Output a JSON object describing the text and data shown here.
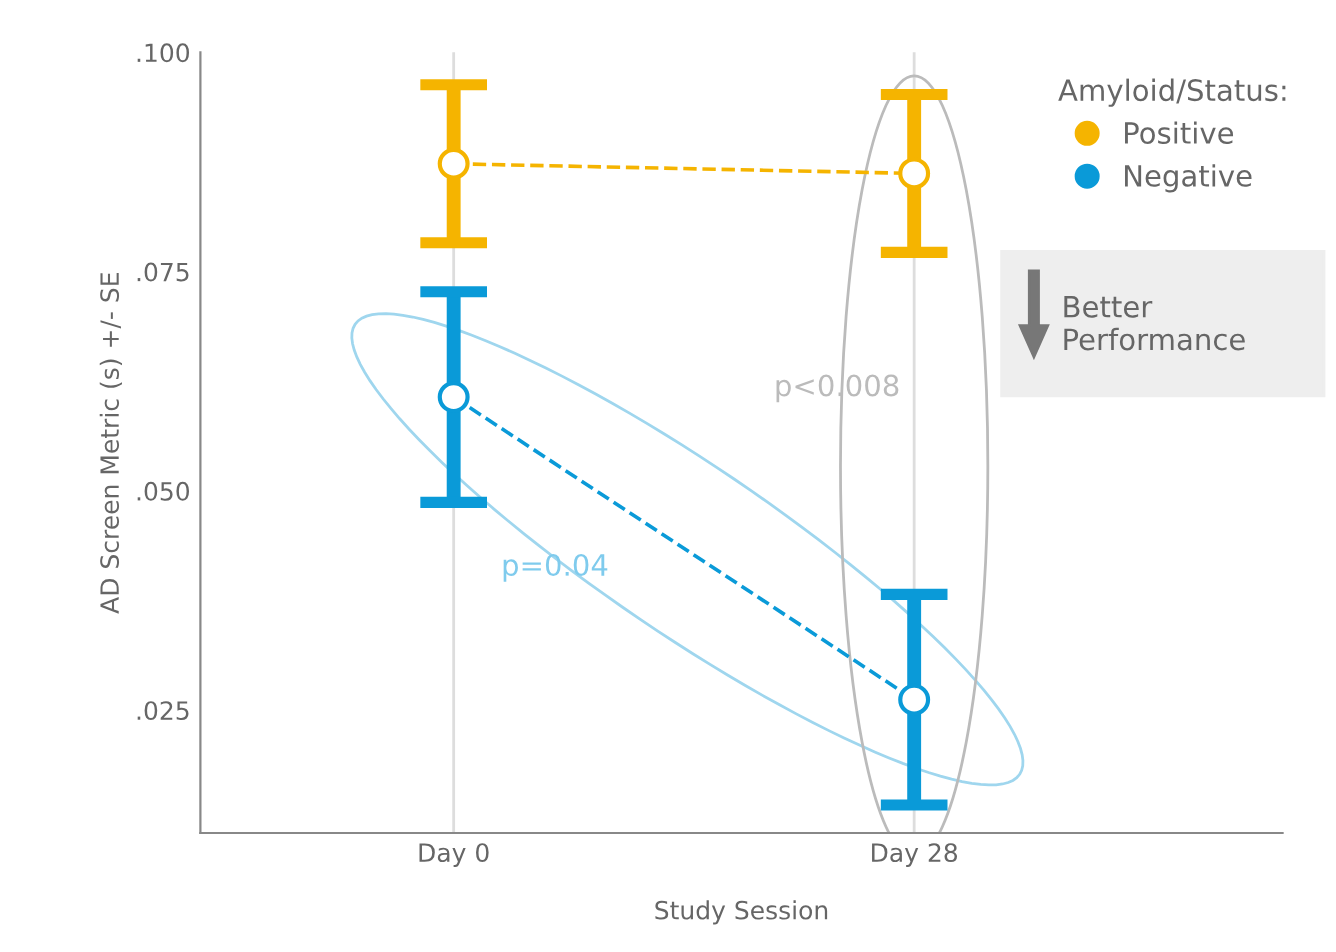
{
  "chart_data": {
    "type": "line",
    "xlabel": "Study Session",
    "ylabel": "AD Screen Metric (s) +/- SE",
    "legend_title": "Amyloid/Status:",
    "categories": [
      "Day 0",
      "Day 28"
    ],
    "series": [
      {
        "name": "Positive",
        "color": "#f5b400",
        "values": [
          0.0873,
          0.0862
        ],
        "errors": [
          0.009,
          0.009
        ]
      },
      {
        "name": "Negative",
        "color": "#0a9ad8",
        "values": [
          0.0607,
          0.0262
        ],
        "errors": [
          0.012,
          0.012
        ]
      }
    ],
    "ylim": [
      0.011,
      0.1
    ],
    "yticks": [
      {
        "value": 0.025,
        "label": ".025"
      },
      {
        "value": 0.05,
        "label": ".050"
      },
      {
        "value": 0.075,
        "label": ".075"
      },
      {
        "value": 0.1,
        "label": ".100"
      }
    ],
    "grid": "x",
    "legend": "top right",
    "marker": "circle",
    "line_style": "dashed",
    "annotations": [
      "p=0.04",
      "p<0.008",
      "Better Performance"
    ]
  }
}
